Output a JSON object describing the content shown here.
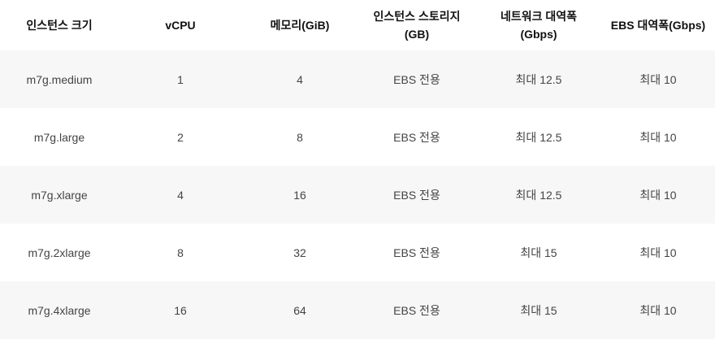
{
  "table": {
    "headers": [
      "인스턴스 크기",
      "vCPU",
      "메모리(GiB)",
      "인스턴스 스토리지\n(GB)",
      "네트워크 대역폭\n(Gbps)",
      "EBS 대역폭(Gbps)"
    ],
    "rows": [
      [
        "m7g.medium",
        "1",
        "4",
        "EBS 전용",
        "최대 12.5",
        "최대 10"
      ],
      [
        "m7g.large",
        "2",
        "8",
        "EBS 전용",
        "최대 12.5",
        "최대 10"
      ],
      [
        "m7g.xlarge",
        "4",
        "16",
        "EBS 전용",
        "최대 12.5",
        "최대 10"
      ],
      [
        "m7g.2xlarge",
        "8",
        "32",
        "EBS 전용",
        "최대 15",
        "최대 10"
      ],
      [
        "m7g.4xlarge",
        "16",
        "64",
        "EBS 전용",
        "최대 15",
        "최대 10"
      ]
    ]
  },
  "colors": {
    "header_text": "#111111",
    "cell_text": "#444444",
    "row_stripe": "#f7f7f7",
    "row_plain": "#ffffff"
  }
}
